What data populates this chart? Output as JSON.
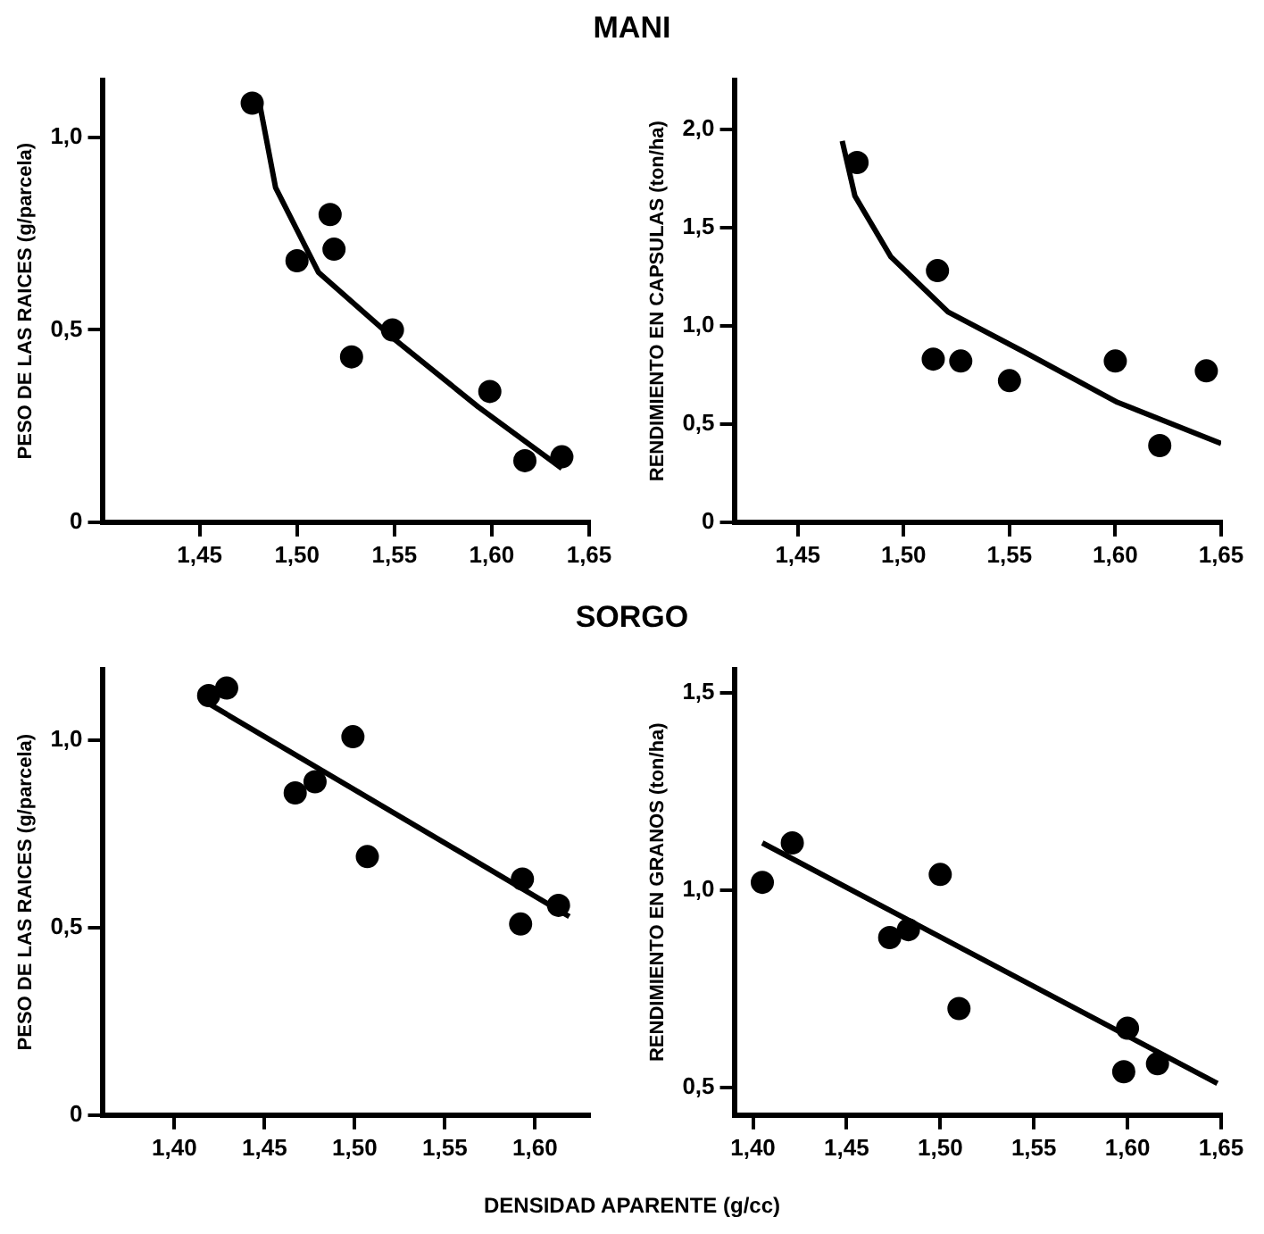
{
  "chart_data": [
    {
      "type": "scatter",
      "title": "MANI",
      "ylabel": "PESO DE LAS RAICES (g/parcela)",
      "grid": false,
      "legend": false,
      "xlim": [
        1.4,
        1.65
      ],
      "xticks": [
        {
          "value": 1.45,
          "label": "1,45"
        },
        {
          "value": 1.5,
          "label": "1,50"
        },
        {
          "value": 1.55,
          "label": "1,55"
        },
        {
          "value": 1.6,
          "label": "1,60"
        },
        {
          "value": 1.65,
          "label": "1,65"
        }
      ],
      "ylim": [
        0,
        1.15
      ],
      "yticks": [
        {
          "value": 0,
          "label": "0"
        },
        {
          "value": 0.5,
          "label": "0,5"
        },
        {
          "value": 1.0,
          "label": "1,0"
        }
      ],
      "series": [
        {
          "type": "scatter",
          "marker": "circle",
          "color": "#000000",
          "x": [
            1.477,
            1.5,
            1.517,
            1.519,
            1.528,
            1.549,
            1.599,
            1.617,
            1.636
          ],
          "values": [
            1.09,
            0.68,
            0.8,
            0.71,
            0.43,
            0.5,
            0.34,
            0.16,
            0.17
          ]
        },
        {
          "type": "line",
          "color": "#000000",
          "x": [
            1.48,
            1.489,
            1.511,
            1.549,
            1.593,
            1.636
          ],
          "values": [
            1.11,
            0.87,
            0.65,
            0.48,
            0.3,
            0.14
          ]
        }
      ]
    },
    {
      "type": "scatter",
      "ylabel": "RENDIMIENTO EN CAPSULAS (ton/ha)",
      "grid": false,
      "legend": false,
      "xlim": [
        1.42,
        1.65
      ],
      "xticks": [
        {
          "value": 1.45,
          "label": "1,45"
        },
        {
          "value": 1.5,
          "label": "1,50"
        },
        {
          "value": 1.55,
          "label": "1,55"
        },
        {
          "value": 1.6,
          "label": "1,60"
        },
        {
          "value": 1.65,
          "label": "1,65"
        }
      ],
      "ylim": [
        0,
        2.25
      ],
      "yticks": [
        {
          "value": 0,
          "label": "0"
        },
        {
          "value": 0.5,
          "label": "0,5"
        },
        {
          "value": 1.0,
          "label": "1,0"
        },
        {
          "value": 1.5,
          "label": "1,5"
        },
        {
          "value": 2.0,
          "label": "2,0"
        }
      ],
      "series": [
        {
          "type": "scatter",
          "marker": "circle",
          "color": "#000000",
          "x": [
            1.478,
            1.516,
            1.514,
            1.527,
            1.55,
            1.6,
            1.621,
            1.643
          ],
          "values": [
            1.83,
            1.28,
            0.83,
            0.82,
            0.72,
            0.82,
            0.39,
            0.77
          ]
        },
        {
          "type": "line",
          "color": "#000000",
          "x": [
            1.471,
            1.477,
            1.494,
            1.521,
            1.558,
            1.601,
            1.65
          ],
          "values": [
            1.94,
            1.66,
            1.35,
            1.07,
            0.86,
            0.61,
            0.4
          ]
        }
      ]
    },
    {
      "type": "scatter",
      "title": "SORGO",
      "ylabel": "PESO DE LAS RAICES (g/parcela)",
      "xlabel": "DENSIDAD APARENTE (g/cc)",
      "grid": false,
      "legend": false,
      "xlim": [
        1.36,
        1.63
      ],
      "xticks": [
        {
          "value": 1.4,
          "label": "1,40"
        },
        {
          "value": 1.45,
          "label": "1,45"
        },
        {
          "value": 1.5,
          "label": "1,50"
        },
        {
          "value": 1.55,
          "label": "1,55"
        },
        {
          "value": 1.6,
          "label": "1,60"
        }
      ],
      "ylim": [
        0,
        1.19
      ],
      "yticks": [
        {
          "value": 0,
          "label": "0"
        },
        {
          "value": 0.5,
          "label": "0,5"
        },
        {
          "value": 1.0,
          "label": "1,0"
        }
      ],
      "series": [
        {
          "type": "scatter",
          "marker": "circle",
          "color": "#000000",
          "x": [
            1.419,
            1.429,
            1.467,
            1.478,
            1.499,
            1.507,
            1.593,
            1.592,
            1.613
          ],
          "values": [
            1.12,
            1.14,
            0.86,
            0.89,
            1.01,
            0.69,
            0.63,
            0.51,
            0.56
          ]
        },
        {
          "type": "line",
          "color": "#000000",
          "x": [
            1.415,
            1.619
          ],
          "values": [
            1.11,
            0.53
          ]
        }
      ]
    },
    {
      "type": "scatter",
      "ylabel": "RENDIMIENTO EN GRANOS (ton/ha)",
      "grid": false,
      "legend": false,
      "xlim": [
        1.39,
        1.65
      ],
      "xticks": [
        {
          "value": 1.4,
          "label": "1,40"
        },
        {
          "value": 1.45,
          "label": "1,45"
        },
        {
          "value": 1.5,
          "label": "1,50"
        },
        {
          "value": 1.55,
          "label": "1,55"
        },
        {
          "value": 1.6,
          "label": "1,60"
        },
        {
          "value": 1.65,
          "label": "1,65"
        }
      ],
      "ylim": [
        0.43,
        1.56
      ],
      "yticks": [
        {
          "value": 0.5,
          "label": "0,5"
        },
        {
          "value": 1.0,
          "label": "1,0"
        },
        {
          "value": 1.5,
          "label": "1,5"
        }
      ],
      "series": [
        {
          "type": "scatter",
          "marker": "circle",
          "color": "#000000",
          "x": [
            1.405,
            1.421,
            1.473,
            1.483,
            1.5,
            1.51,
            1.6,
            1.598,
            1.616
          ],
          "values": [
            1.02,
            1.12,
            0.88,
            0.9,
            1.04,
            0.7,
            0.65,
            0.54,
            0.56
          ]
        },
        {
          "type": "line",
          "color": "#000000",
          "x": [
            1.405,
            1.648
          ],
          "values": [
            1.12,
            0.51
          ]
        }
      ]
    }
  ]
}
